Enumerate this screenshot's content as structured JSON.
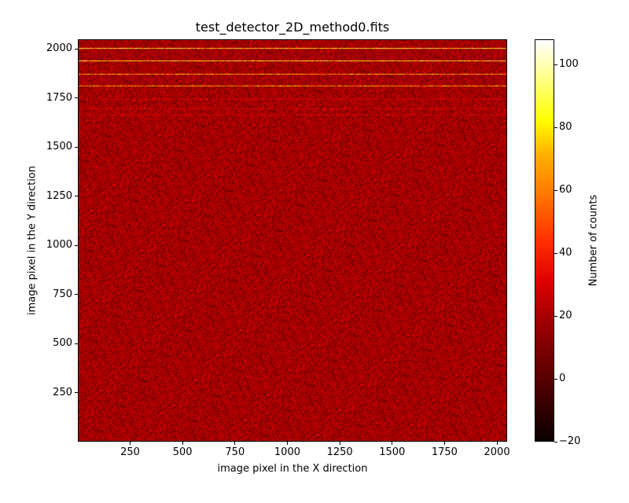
{
  "chart_data": {
    "type": "heatmap",
    "title": "test_detector_2D_method0.fits",
    "xlabel": "image pixel in the X direction",
    "ylabel": "image pixel in the Y direction",
    "xlim": [
      1,
      2048
    ],
    "ylim": [
      1,
      2048
    ],
    "xticks": [
      250,
      500,
      750,
      1000,
      1250,
      1500,
      1750,
      2000
    ],
    "yticks": [
      250,
      500,
      750,
      1000,
      1250,
      1500,
      1750,
      2000
    ],
    "colorbar": {
      "label": "Number of counts",
      "colormap": "hot",
      "vmin": -20,
      "vmax": 108,
      "ticks": [
        -20,
        0,
        20,
        40,
        60,
        80,
        100
      ]
    },
    "background_level_counts": 10,
    "bright_rows_y": [
      2010,
      1945,
      1875,
      1815
    ],
    "faint_rows_y": [
      1750,
      1700,
      1670
    ],
    "description": "Noisy detector image dominated by background (~0-20 counts, dark red) with four bright horizontal spectral traces near the top (peaks up to ~100 counts)."
  },
  "colors": {
    "background": "#8a0000",
    "trace": "#ffcc33"
  }
}
